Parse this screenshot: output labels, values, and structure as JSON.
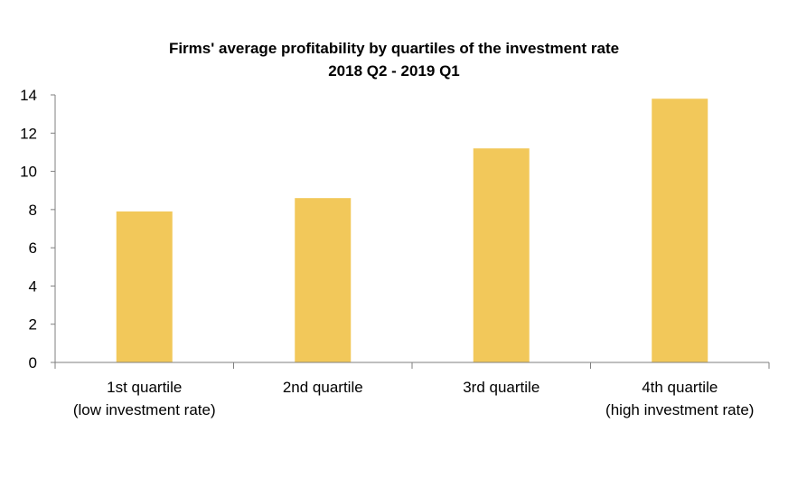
{
  "chart_data": {
    "type": "bar",
    "title": "Firms' average profitability by quartiles of the investment rate",
    "subtitle": "2018 Q2 - 2019 Q1",
    "categories": [
      [
        "1st quartile",
        "(low investment rate)"
      ],
      [
        "2nd quartile"
      ],
      [
        "3rd quartile"
      ],
      [
        "4th quartile",
        "(high investment rate)"
      ]
    ],
    "values": [
      7.9,
      8.6,
      11.2,
      13.8
    ],
    "ylim": [
      0,
      14
    ],
    "yticks": [
      "0",
      "2",
      "4",
      "6",
      "8",
      "10",
      "12",
      "14"
    ],
    "grid": false,
    "legend": "none",
    "bar_color": "#f2c85a"
  }
}
